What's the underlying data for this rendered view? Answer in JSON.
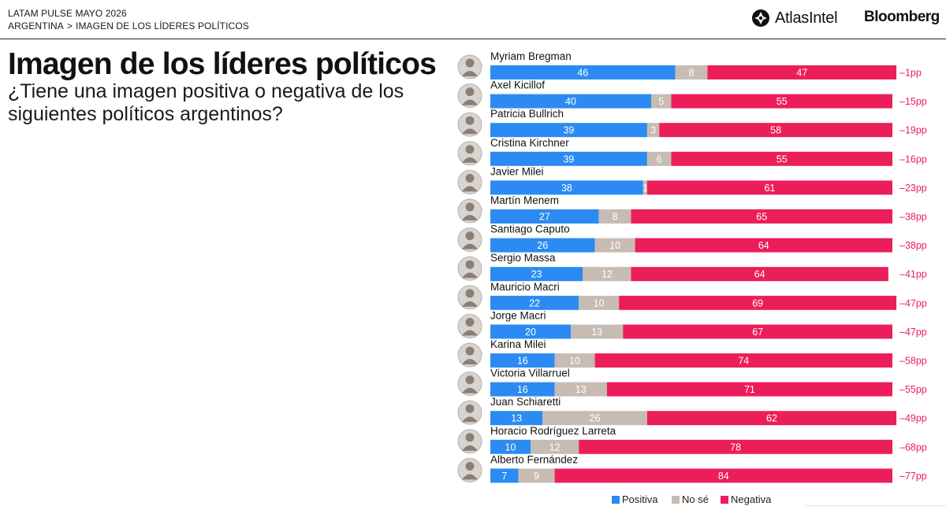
{
  "header": {
    "kicker": "LATAM PULSE MAYO 2026",
    "breadcrumb": [
      "ARGENTINA",
      ">",
      "IMAGEN DE LOS LÍDERES POLÍTICOS"
    ],
    "brand_atlas": "AtlasIntel",
    "brand_bloomberg": "Bloomberg"
  },
  "chart_data": {
    "type": "bar",
    "orientation": "horizontal",
    "stacked": true,
    "title": "Imagen de los líderes políticos",
    "subtitle": "¿Tiene una imagen positiva o negativa de los siguientes políticos argentinos?",
    "categories": [
      "Myriam Bregman",
      "Axel Kicillof",
      "Patricia Bullrich",
      "Cristina Kirchner",
      "Javier Milei",
      "Martín Menem",
      "Santiago Caputo",
      "Sergio Massa",
      "Mauricio Macri",
      "Jorge Macri",
      "Karina Milei",
      "Victoria Villarruel",
      "Juan Schiaretti",
      "Horacio Rodríguez Larreta",
      "Alberto Fernández"
    ],
    "series": [
      {
        "name": "Positiva",
        "color": "#2b8bf2",
        "values": [
          46,
          40,
          39,
          39,
          38,
          27,
          26,
          23,
          22,
          20,
          16,
          16,
          13,
          10,
          7
        ]
      },
      {
        "name": "No sé",
        "color": "#c7bcb4",
        "values": [
          8,
          5,
          3,
          6,
          1,
          8,
          10,
          12,
          10,
          13,
          10,
          13,
          26,
          12,
          9
        ]
      },
      {
        "name": "Negativa",
        "color": "#ec1e59",
        "values": [
          47,
          55,
          58,
          55,
          61,
          65,
          64,
          64,
          69,
          67,
          74,
          71,
          62,
          78,
          84
        ]
      }
    ],
    "net_labels": [
      "–1pp",
      "–15pp",
      "–19pp",
      "–16pp",
      "–23pp",
      "–38pp",
      "–38pp",
      "–41pp",
      "–47pp",
      "–47pp",
      "–58pp",
      "–55pp",
      "–49pp",
      "–68pp",
      "–77pp"
    ],
    "net_color": "#ec1e59",
    "xlim": [
      0,
      100
    ],
    "grid": false,
    "legend_position": "bottom",
    "avatar_icons": [
      "person-avatar-icon"
    ]
  }
}
